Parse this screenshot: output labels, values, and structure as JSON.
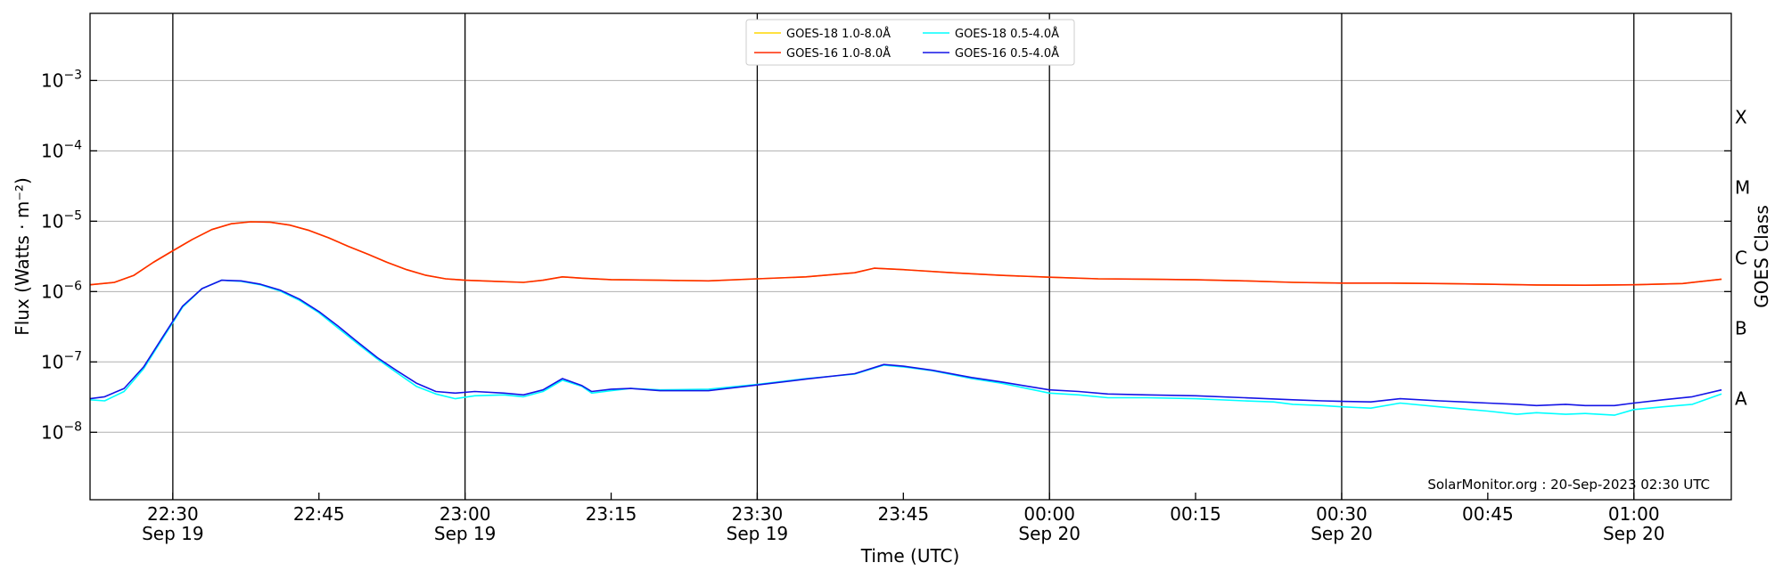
{
  "chart_data": {
    "type": "line",
    "xlabel": "Time (UTC)",
    "ylabel": "Flux (Watts · m⁻²)",
    "ylabel_right": "GOES Class",
    "y_scale": "log",
    "ylim": [
      1.1e-09,
      0.009
    ],
    "xlim": [
      "2023-09-19 22:21:30",
      "2023-09-20 01:10:00"
    ],
    "grid": "horizontal at each decade",
    "legend_position": "top-center",
    "annotation": "SolarMonitor.org : 20-Sep-2023 02:30 UTC",
    "x_ticks": [
      {
        "time": "22:30",
        "label": "22:30",
        "sublabel": "Sep 19",
        "major": true
      },
      {
        "time": "22:45",
        "label": "22:45",
        "sublabel": "",
        "major": false
      },
      {
        "time": "23:00",
        "label": "23:00",
        "sublabel": "Sep 19",
        "major": true
      },
      {
        "time": "23:15",
        "label": "23:15",
        "sublabel": "",
        "major": false
      },
      {
        "time": "23:30",
        "label": "23:30",
        "sublabel": "Sep 19",
        "major": true
      },
      {
        "time": "23:45",
        "label": "23:45",
        "sublabel": "",
        "major": false
      },
      {
        "time": "00:00",
        "label": "00:00",
        "sublabel": "Sep 20",
        "major": true
      },
      {
        "time": "00:15",
        "label": "00:15",
        "sublabel": "",
        "major": false
      },
      {
        "time": "00:30",
        "label": "00:30",
        "sublabel": "Sep 20",
        "major": true
      },
      {
        "time": "00:45",
        "label": "00:45",
        "sublabel": "",
        "major": false
      },
      {
        "time": "01:00",
        "label": "01:00",
        "sublabel": "Sep 20",
        "major": true
      }
    ],
    "y_ticks": [
      {
        "value": 0.001,
        "base": "10",
        "exp": "−3"
      },
      {
        "value": 0.0001,
        "base": "10",
        "exp": "−4"
      },
      {
        "value": 1e-05,
        "base": "10",
        "exp": "−5"
      },
      {
        "value": 1e-06,
        "base": "10",
        "exp": "−6"
      },
      {
        "value": 1e-07,
        "base": "10",
        "exp": "−7"
      },
      {
        "value": 1e-08,
        "base": "10",
        "exp": "−8"
      }
    ],
    "goes_classes": [
      {
        "label": "X",
        "value": 0.0001
      },
      {
        "label": "M",
        "value": 1e-05
      },
      {
        "label": "C",
        "value": 1e-06
      },
      {
        "label": "B",
        "value": 1e-07
      },
      {
        "label": "A",
        "value": 1e-08
      }
    ],
    "series": [
      {
        "name": "GOES-18 1.0-8.0Å",
        "color": "#ffd700",
        "points": [
          [
            "22:21:30",
            1.25e-06
          ],
          [
            "22:24",
            1.35e-06
          ],
          [
            "22:26",
            1.7e-06
          ],
          [
            "22:28",
            2.6e-06
          ],
          [
            "22:30",
            3.8e-06
          ],
          [
            "22:32",
            5.5e-06
          ],
          [
            "22:34",
            7.6e-06
          ],
          [
            "22:36",
            9.2e-06
          ],
          [
            "22:38",
            9.8e-06
          ],
          [
            "22:40",
            9.7e-06
          ],
          [
            "22:42",
            8.8e-06
          ],
          [
            "22:44",
            7.4e-06
          ],
          [
            "22:46",
            5.8e-06
          ],
          [
            "22:48",
            4.4e-06
          ],
          [
            "22:50",
            3.4e-06
          ],
          [
            "22:52",
            2.6e-06
          ],
          [
            "22:54",
            2.05e-06
          ],
          [
            "22:56",
            1.7e-06
          ],
          [
            "22:58",
            1.52e-06
          ],
          [
            "23:00",
            1.45e-06
          ],
          [
            "23:03",
            1.4e-06
          ],
          [
            "23:06",
            1.35e-06
          ],
          [
            "23:08",
            1.45e-06
          ],
          [
            "23:10",
            1.62e-06
          ],
          [
            "23:12",
            1.55e-06
          ],
          [
            "23:15",
            1.48e-06
          ],
          [
            "23:20",
            1.45e-06
          ],
          [
            "23:25",
            1.42e-06
          ],
          [
            "23:30",
            1.52e-06
          ],
          [
            "23:35",
            1.62e-06
          ],
          [
            "23:40",
            1.85e-06
          ],
          [
            "23:42",
            2.15e-06
          ],
          [
            "23:45",
            2.05e-06
          ],
          [
            "23:50",
            1.85e-06
          ],
          [
            "23:55",
            1.7e-06
          ],
          [
            "00:00",
            1.6e-06
          ],
          [
            "00:05",
            1.52e-06
          ],
          [
            "00:10",
            1.5e-06
          ],
          [
            "00:15",
            1.47e-06
          ],
          [
            "00:20",
            1.42e-06
          ],
          [
            "00:25",
            1.35e-06
          ],
          [
            "00:30",
            1.32e-06
          ],
          [
            "00:35",
            1.32e-06
          ],
          [
            "00:40",
            1.3e-06
          ],
          [
            "00:45",
            1.27e-06
          ],
          [
            "00:50",
            1.24e-06
          ],
          [
            "00:55",
            1.23e-06
          ],
          [
            "01:00",
            1.25e-06
          ],
          [
            "01:05",
            1.3e-06
          ],
          [
            "01:09",
            1.5e-06
          ]
        ]
      },
      {
        "name": "GOES-16 1.0-8.0Å",
        "color": "#ff2a00",
        "points": [
          [
            "22:21:30",
            1.25e-06
          ],
          [
            "22:24",
            1.35e-06
          ],
          [
            "22:26",
            1.7e-06
          ],
          [
            "22:28",
            2.6e-06
          ],
          [
            "22:30",
            3.8e-06
          ],
          [
            "22:32",
            5.5e-06
          ],
          [
            "22:34",
            7.6e-06
          ],
          [
            "22:36",
            9.2e-06
          ],
          [
            "22:38",
            9.8e-06
          ],
          [
            "22:40",
            9.7e-06
          ],
          [
            "22:42",
            8.8e-06
          ],
          [
            "22:44",
            7.4e-06
          ],
          [
            "22:46",
            5.8e-06
          ],
          [
            "22:48",
            4.4e-06
          ],
          [
            "22:50",
            3.4e-06
          ],
          [
            "22:52",
            2.6e-06
          ],
          [
            "22:54",
            2.05e-06
          ],
          [
            "22:56",
            1.7e-06
          ],
          [
            "22:58",
            1.52e-06
          ],
          [
            "23:00",
            1.45e-06
          ],
          [
            "23:03",
            1.4e-06
          ],
          [
            "23:06",
            1.35e-06
          ],
          [
            "23:08",
            1.45e-06
          ],
          [
            "23:10",
            1.62e-06
          ],
          [
            "23:12",
            1.55e-06
          ],
          [
            "23:15",
            1.48e-06
          ],
          [
            "23:20",
            1.45e-06
          ],
          [
            "23:25",
            1.42e-06
          ],
          [
            "23:30",
            1.52e-06
          ],
          [
            "23:35",
            1.62e-06
          ],
          [
            "23:40",
            1.85e-06
          ],
          [
            "23:42",
            2.15e-06
          ],
          [
            "23:45",
            2.05e-06
          ],
          [
            "23:50",
            1.85e-06
          ],
          [
            "23:55",
            1.7e-06
          ],
          [
            "00:00",
            1.6e-06
          ],
          [
            "00:05",
            1.52e-06
          ],
          [
            "00:10",
            1.5e-06
          ],
          [
            "00:15",
            1.47e-06
          ],
          [
            "00:20",
            1.42e-06
          ],
          [
            "00:25",
            1.35e-06
          ],
          [
            "00:30",
            1.32e-06
          ],
          [
            "00:35",
            1.32e-06
          ],
          [
            "00:40",
            1.3e-06
          ],
          [
            "00:45",
            1.27e-06
          ],
          [
            "00:50",
            1.24e-06
          ],
          [
            "00:55",
            1.23e-06
          ],
          [
            "01:00",
            1.25e-06
          ],
          [
            "01:05",
            1.3e-06
          ],
          [
            "01:09",
            1.5e-06
          ]
        ]
      },
      {
        "name": "GOES-18 0.5-4.0Å",
        "color": "#00ffff",
        "points": [
          [
            "22:21:30",
            2.9e-08
          ],
          [
            "22:23",
            2.8e-08
          ],
          [
            "22:25",
            3.8e-08
          ],
          [
            "22:27",
            8e-08
          ],
          [
            "22:29",
            2.2e-07
          ],
          [
            "22:31",
            6e-07
          ],
          [
            "22:33",
            1.1e-06
          ],
          [
            "22:35",
            1.45e-06
          ],
          [
            "22:37",
            1.4e-06
          ],
          [
            "22:39",
            1.25e-06
          ],
          [
            "22:41",
            1.02e-06
          ],
          [
            "22:43",
            7.5e-07
          ],
          [
            "22:45",
            5e-07
          ],
          [
            "22:47",
            3e-07
          ],
          [
            "22:49",
            1.8e-07
          ],
          [
            "22:51",
            1.1e-07
          ],
          [
            "22:53",
            7e-08
          ],
          [
            "22:55",
            4.5e-08
          ],
          [
            "22:57",
            3.5e-08
          ],
          [
            "22:59",
            3e-08
          ],
          [
            "23:01",
            3.3e-08
          ],
          [
            "23:04",
            3.4e-08
          ],
          [
            "23:06",
            3.2e-08
          ],
          [
            "23:08",
            3.8e-08
          ],
          [
            "23:10",
            5.5e-08
          ],
          [
            "23:12",
            4.5e-08
          ],
          [
            "23:13",
            3.6e-08
          ],
          [
            "23:15",
            3.9e-08
          ],
          [
            "23:17",
            4.2e-08
          ],
          [
            "23:20",
            4e-08
          ],
          [
            "23:25",
            4.1e-08
          ],
          [
            "23:30",
            4.8e-08
          ],
          [
            "23:35",
            5.8e-08
          ],
          [
            "23:40",
            6.7e-08
          ],
          [
            "23:43",
            9e-08
          ],
          [
            "23:45",
            8.5e-08
          ],
          [
            "23:48",
            7.5e-08
          ],
          [
            "23:52",
            5.8e-08
          ],
          [
            "23:55",
            5e-08
          ],
          [
            "00:00",
            3.6e-08
          ],
          [
            "00:03",
            3.4e-08
          ],
          [
            "00:06",
            3.1e-08
          ],
          [
            "00:10",
            3.1e-08
          ],
          [
            "00:15",
            3e-08
          ],
          [
            "00:20",
            2.8e-08
          ],
          [
            "00:23",
            2.7e-08
          ],
          [
            "00:25",
            2.5e-08
          ],
          [
            "00:28",
            2.4e-08
          ],
          [
            "00:30",
            2.3e-08
          ],
          [
            "00:33",
            2.2e-08
          ],
          [
            "00:36",
            2.6e-08
          ],
          [
            "00:40",
            2.3e-08
          ],
          [
            "00:45",
            2e-08
          ],
          [
            "00:48",
            1.8e-08
          ],
          [
            "00:50",
            1.9e-08
          ],
          [
            "00:53",
            1.8e-08
          ],
          [
            "00:55",
            1.85e-08
          ],
          [
            "00:58",
            1.75e-08
          ],
          [
            "01:00",
            2.1e-08
          ],
          [
            "01:03",
            2.3e-08
          ],
          [
            "01:06",
            2.5e-08
          ],
          [
            "01:09",
            3.5e-08
          ]
        ]
      },
      {
        "name": "GOES-16 0.5-4.0Å",
        "color": "#1414e6",
        "points": [
          [
            "22:21:30",
            3e-08
          ],
          [
            "22:23",
            3.2e-08
          ],
          [
            "22:25",
            4.2e-08
          ],
          [
            "22:27",
            8.5e-08
          ],
          [
            "22:29",
            2.3e-07
          ],
          [
            "22:31",
            6.2e-07
          ],
          [
            "22:33",
            1.1e-06
          ],
          [
            "22:35",
            1.45e-06
          ],
          [
            "22:37",
            1.42e-06
          ],
          [
            "22:39",
            1.27e-06
          ],
          [
            "22:41",
            1.05e-06
          ],
          [
            "22:43",
            7.8e-07
          ],
          [
            "22:45",
            5.2e-07
          ],
          [
            "22:47",
            3.2e-07
          ],
          [
            "22:49",
            1.9e-07
          ],
          [
            "22:51",
            1.15e-07
          ],
          [
            "22:53",
            7.5e-08
          ],
          [
            "22:55",
            5e-08
          ],
          [
            "22:57",
            3.8e-08
          ],
          [
            "22:59",
            3.6e-08
          ],
          [
            "23:01",
            3.8e-08
          ],
          [
            "23:04",
            3.6e-08
          ],
          [
            "23:06",
            3.4e-08
          ],
          [
            "23:08",
            4e-08
          ],
          [
            "23:10",
            5.8e-08
          ],
          [
            "23:12",
            4.6e-08
          ],
          [
            "23:13",
            3.8e-08
          ],
          [
            "23:15",
            4.1e-08
          ],
          [
            "23:17",
            4.2e-08
          ],
          [
            "23:20",
            3.9e-08
          ],
          [
            "23:25",
            3.9e-08
          ],
          [
            "23:30",
            4.7e-08
          ],
          [
            "23:35",
            5.7e-08
          ],
          [
            "23:40",
            6.8e-08
          ],
          [
            "23:43",
            9.2e-08
          ],
          [
            "23:45",
            8.7e-08
          ],
          [
            "23:48",
            7.6e-08
          ],
          [
            "23:52",
            6e-08
          ],
          [
            "23:55",
            5.2e-08
          ],
          [
            "00:00",
            4e-08
          ],
          [
            "00:03",
            3.8e-08
          ],
          [
            "00:06",
            3.5e-08
          ],
          [
            "00:10",
            3.4e-08
          ],
          [
            "00:15",
            3.3e-08
          ],
          [
            "00:20",
            3.1e-08
          ],
          [
            "00:25",
            2.9e-08
          ],
          [
            "00:28",
            2.8e-08
          ],
          [
            "00:30",
            2.75e-08
          ],
          [
            "00:33",
            2.7e-08
          ],
          [
            "00:36",
            3e-08
          ],
          [
            "00:40",
            2.8e-08
          ],
          [
            "00:45",
            2.6e-08
          ],
          [
            "00:48",
            2.5e-08
          ],
          [
            "00:50",
            2.4e-08
          ],
          [
            "00:53",
            2.5e-08
          ],
          [
            "00:55",
            2.4e-08
          ],
          [
            "00:58",
            2.4e-08
          ],
          [
            "01:00",
            2.6e-08
          ],
          [
            "01:03",
            2.9e-08
          ],
          [
            "01:06",
            3.2e-08
          ],
          [
            "01:09",
            4e-08
          ]
        ]
      }
    ]
  }
}
